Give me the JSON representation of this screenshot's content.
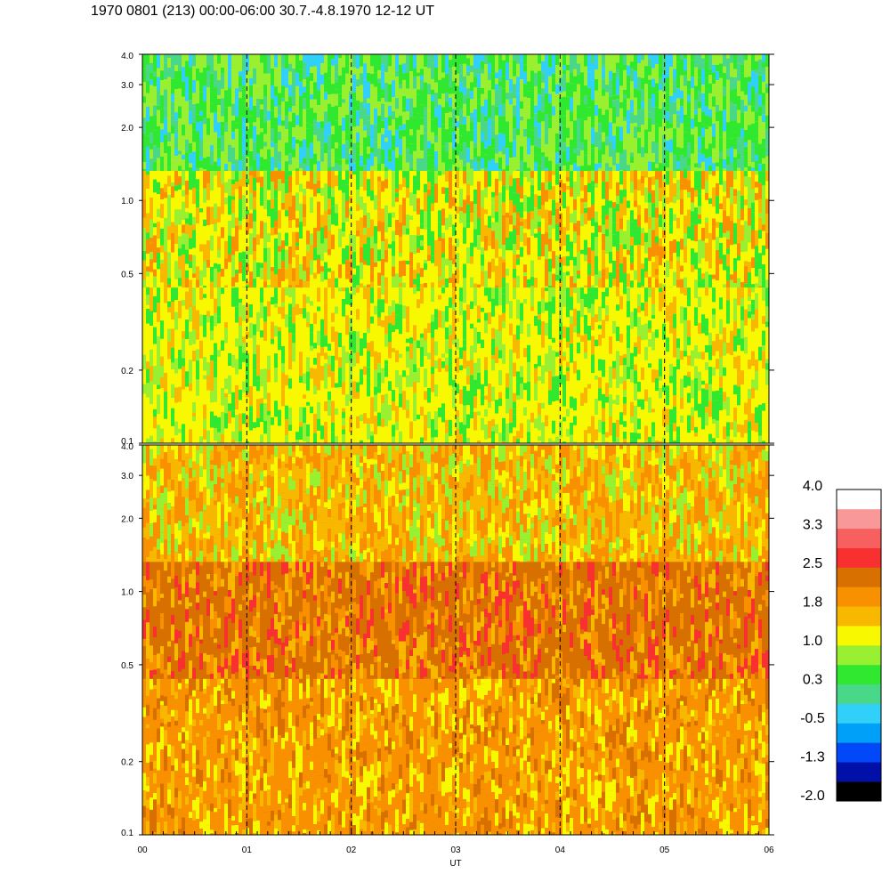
{
  "title": "1970 0801 (213) 00:00-06:00 30.7.-4.8.1970  12-12 UT",
  "chart_data": {
    "type": "heatmap",
    "title": "1970 0801 (213) 00:00-06:00 30.7.-4.8.1970  12-12 UT",
    "xlabel": "UT",
    "x_tick_labels": [
      "00",
      "01",
      "02",
      "03",
      "04",
      "05",
      "06"
    ],
    "x_range": [
      0,
      6
    ],
    "dashed_vertical_lines_at": [
      1,
      2,
      3,
      4,
      5
    ],
    "panels": [
      {
        "name": "",
        "y_scale": "log",
        "y_range": [
          0.1,
          4.0
        ],
        "y_ticks": [
          0.1,
          0.2,
          0.5,
          1.0,
          2.0,
          3.0,
          4.0
        ],
        "y_tick_labels": [
          "0.1",
          "0.2",
          "0.5",
          "1.0",
          "2.0",
          "3.0",
          "4.0"
        ],
        "dominant_levels": {
          "low_band": "0.3 to 1.0",
          "mid_band": "1.0 to 1.8",
          "high_band": "-0.5 to 0.3"
        }
      },
      {
        "name": "",
        "y_scale": "log",
        "y_range": [
          0.1,
          4.0
        ],
        "y_ticks": [
          0.1,
          0.2,
          0.5,
          1.0,
          2.0,
          3.0,
          4.0
        ],
        "y_tick_labels": [
          "0.1",
          "0.2",
          "0.5",
          "1.0",
          "2.0",
          "3.0",
          "4.0"
        ],
        "dominant_levels": {
          "low_band": "1.8 to 2.5",
          "mid_band": "2.5",
          "high_band": "1.0 to 1.8"
        }
      }
    ],
    "colorbar": {
      "range": [
        -2.0,
        4.0
      ],
      "labels": [
        "4.0",
        "3.3",
        "2.5",
        "1.8",
        "1.0",
        "0.3",
        "-0.5",
        "-1.3",
        "-2.0"
      ],
      "colors": [
        "#000000",
        "#0010a8",
        "#0048f8",
        "#00a0f8",
        "#30d0f8",
        "#48d888",
        "#30e830",
        "#98f030",
        "#f8f800",
        "#f8b800",
        "#f89000",
        "#d87000",
        "#f83030",
        "#f86060",
        "#f89898",
        "#ffffff"
      ]
    }
  }
}
